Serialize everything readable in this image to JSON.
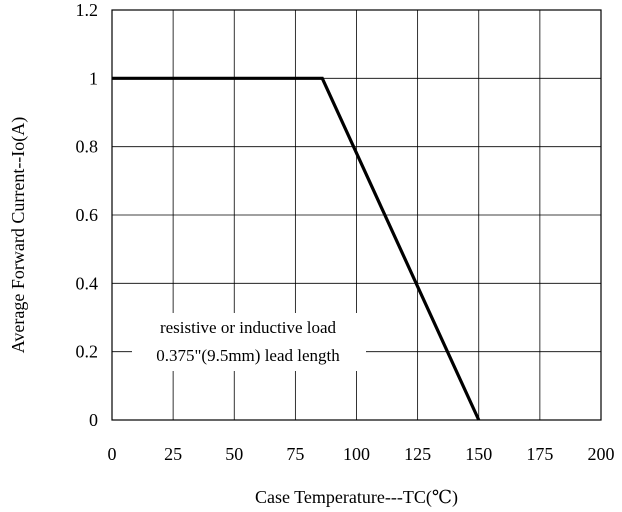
{
  "chart_data": {
    "type": "line",
    "xlabel": "Case Temperature---TC(℃)",
    "ylabel": "Average Forward Current--Io(A)",
    "xlim": [
      0,
      200
    ],
    "ylim": [
      0,
      1.2
    ],
    "x_ticks": [
      0,
      25,
      50,
      75,
      100,
      125,
      150,
      175,
      200
    ],
    "y_ticks": [
      0,
      0.2,
      0.4,
      0.6,
      0.8,
      1,
      1.2
    ],
    "x_tick_labels": [
      "0",
      "25",
      "50",
      "75",
      "100",
      "125",
      "150",
      "175",
      "200"
    ],
    "y_tick_labels": [
      "0",
      "0.2",
      "0.4",
      "0.6",
      "0.8",
      "1",
      "1.2"
    ],
    "grid": true,
    "series": [
      {
        "x": [
          0,
          86,
          150
        ],
        "y": [
          1,
          1,
          0
        ],
        "color": "#000000"
      }
    ],
    "annotations": [
      "resistive or inductive load",
      "0.375\"(9.5mm) lead length"
    ]
  }
}
